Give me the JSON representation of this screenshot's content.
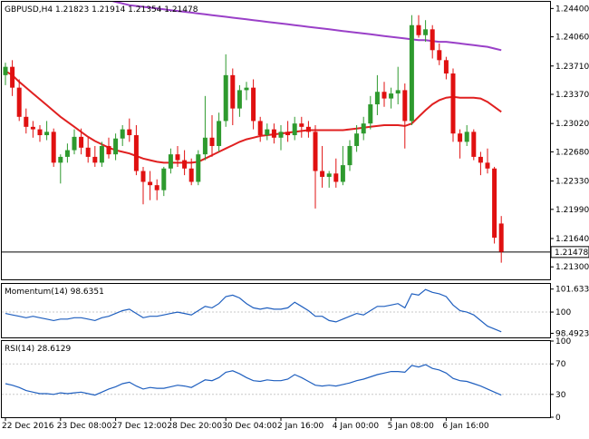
{
  "colors": {
    "bull": "#2e9a2e",
    "bear": "#e01010",
    "ma_fast": "#e02020",
    "ma_slow": "#9a40c8",
    "osc": "#1f5fbf",
    "grid": "#c8c8c8",
    "frame": "#000000"
  },
  "icons": {
    "current_price_tag": "price-tag"
  },
  "chart_data": [
    {
      "type": "candlestick",
      "title": "GBPUSD,H4  1.21823 1.21914 1.21354 1.21478",
      "ylim": [
        1.2115,
        1.2448
      ],
      "yticks": [
        1.244,
        1.2406,
        1.2371,
        1.2337,
        1.2302,
        1.2268,
        1.2233,
        1.2199,
        1.2164,
        1.213
      ],
      "ytick_labels": [
        "1.24400",
        "1.24060",
        "1.23710",
        "1.23370",
        "1.23020",
        "1.22680",
        "1.22330",
        "1.21990",
        "1.21640",
        "1.21300"
      ],
      "current_price": 1.21478,
      "current_price_label": "1.21478",
      "candles": [
        {
          "o": 1.236,
          "h": 1.2375,
          "l": 1.2348,
          "c": 1.237
        },
        {
          "o": 1.237,
          "h": 1.2378,
          "l": 1.2335,
          "c": 1.2345
        },
        {
          "o": 1.2345,
          "h": 1.2355,
          "l": 1.2305,
          "c": 1.231
        },
        {
          "o": 1.231,
          "h": 1.232,
          "l": 1.229,
          "c": 1.2298
        },
        {
          "o": 1.2298,
          "h": 1.2305,
          "l": 1.2285,
          "c": 1.2295
        },
        {
          "o": 1.2295,
          "h": 1.23,
          "l": 1.228,
          "c": 1.2288
        },
        {
          "o": 1.2288,
          "h": 1.2305,
          "l": 1.2282,
          "c": 1.2292
        },
        {
          "o": 1.2292,
          "h": 1.2296,
          "l": 1.225,
          "c": 1.2255
        },
        {
          "o": 1.2255,
          "h": 1.2265,
          "l": 1.223,
          "c": 1.2262
        },
        {
          "o": 1.2262,
          "h": 1.2278,
          "l": 1.2255,
          "c": 1.227
        },
        {
          "o": 1.227,
          "h": 1.2295,
          "l": 1.2265,
          "c": 1.2286
        },
        {
          "o": 1.2286,
          "h": 1.2296,
          "l": 1.2265,
          "c": 1.2273
        },
        {
          "o": 1.2273,
          "h": 1.2285,
          "l": 1.2255,
          "c": 1.2262
        },
        {
          "o": 1.2262,
          "h": 1.2275,
          "l": 1.225,
          "c": 1.2255
        },
        {
          "o": 1.2255,
          "h": 1.228,
          "l": 1.225,
          "c": 1.2275
        },
        {
          "o": 1.2275,
          "h": 1.2285,
          "l": 1.226,
          "c": 1.2265
        },
        {
          "o": 1.2265,
          "h": 1.229,
          "l": 1.2258,
          "c": 1.2284
        },
        {
          "o": 1.2284,
          "h": 1.23,
          "l": 1.2275,
          "c": 1.2295
        },
        {
          "o": 1.2295,
          "h": 1.2308,
          "l": 1.228,
          "c": 1.2288
        },
        {
          "o": 1.2288,
          "h": 1.23,
          "l": 1.224,
          "c": 1.2245
        },
        {
          "o": 1.2245,
          "h": 1.225,
          "l": 1.2205,
          "c": 1.2232
        },
        {
          "o": 1.2232,
          "h": 1.2245,
          "l": 1.221,
          "c": 1.2228
        },
        {
          "o": 1.2228,
          "h": 1.2235,
          "l": 1.221,
          "c": 1.2222
        },
        {
          "o": 1.2222,
          "h": 1.225,
          "l": 1.2215,
          "c": 1.2248
        },
        {
          "o": 1.2248,
          "h": 1.2272,
          "l": 1.2242,
          "c": 1.2265
        },
        {
          "o": 1.2265,
          "h": 1.2275,
          "l": 1.225,
          "c": 1.2258
        },
        {
          "o": 1.2258,
          "h": 1.227,
          "l": 1.224,
          "c": 1.2248
        },
        {
          "o": 1.2248,
          "h": 1.226,
          "l": 1.2228,
          "c": 1.2232
        },
        {
          "o": 1.2232,
          "h": 1.227,
          "l": 1.2228,
          "c": 1.2265
        },
        {
          "o": 1.2265,
          "h": 1.2335,
          "l": 1.2258,
          "c": 1.2285
        },
        {
          "o": 1.2285,
          "h": 1.2312,
          "l": 1.2262,
          "c": 1.2275
        },
        {
          "o": 1.2275,
          "h": 1.2315,
          "l": 1.2268,
          "c": 1.2305
        },
        {
          "o": 1.2305,
          "h": 1.2385,
          "l": 1.2298,
          "c": 1.236
        },
        {
          "o": 1.236,
          "h": 1.2368,
          "l": 1.23,
          "c": 1.232
        },
        {
          "o": 1.232,
          "h": 1.2348,
          "l": 1.231,
          "c": 1.2342
        },
        {
          "o": 1.2342,
          "h": 1.2352,
          "l": 1.233,
          "c": 1.2345
        },
        {
          "o": 1.2345,
          "h": 1.2355,
          "l": 1.2295,
          "c": 1.2305
        },
        {
          "o": 1.2305,
          "h": 1.231,
          "l": 1.228,
          "c": 1.2288
        },
        {
          "o": 1.2288,
          "h": 1.2302,
          "l": 1.2282,
          "c": 1.2295
        },
        {
          "o": 1.2295,
          "h": 1.2302,
          "l": 1.2278,
          "c": 1.2285
        },
        {
          "o": 1.2285,
          "h": 1.23,
          "l": 1.227,
          "c": 1.2292
        },
        {
          "o": 1.2292,
          "h": 1.2305,
          "l": 1.228,
          "c": 1.2288
        },
        {
          "o": 1.2288,
          "h": 1.231,
          "l": 1.2282,
          "c": 1.2302
        },
        {
          "o": 1.2302,
          "h": 1.231,
          "l": 1.2285,
          "c": 1.2298
        },
        {
          "o": 1.2298,
          "h": 1.2305,
          "l": 1.2285,
          "c": 1.2292
        },
        {
          "o": 1.2292,
          "h": 1.23,
          "l": 1.22,
          "c": 1.2245
        },
        {
          "o": 1.2245,
          "h": 1.2275,
          "l": 1.2225,
          "c": 1.2238
        },
        {
          "o": 1.2238,
          "h": 1.2245,
          "l": 1.2225,
          "c": 1.2242
        },
        {
          "o": 1.2242,
          "h": 1.226,
          "l": 1.2225,
          "c": 1.2232
        },
        {
          "o": 1.2232,
          "h": 1.2275,
          "l": 1.2228,
          "c": 1.2252
        },
        {
          "o": 1.2252,
          "h": 1.2282,
          "l": 1.2245,
          "c": 1.2275
        },
        {
          "o": 1.2275,
          "h": 1.23,
          "l": 1.2268,
          "c": 1.229
        },
        {
          "o": 1.229,
          "h": 1.231,
          "l": 1.2282,
          "c": 1.2302
        },
        {
          "o": 1.2302,
          "h": 1.2335,
          "l": 1.2295,
          "c": 1.2325
        },
        {
          "o": 1.2325,
          "h": 1.236,
          "l": 1.2312,
          "c": 1.234
        },
        {
          "o": 1.234,
          "h": 1.2352,
          "l": 1.2322,
          "c": 1.2332
        },
        {
          "o": 1.2332,
          "h": 1.2345,
          "l": 1.232,
          "c": 1.2338
        },
        {
          "o": 1.2338,
          "h": 1.237,
          "l": 1.2325,
          "c": 1.2342
        },
        {
          "o": 1.2342,
          "h": 1.235,
          "l": 1.2272,
          "c": 1.2305
        },
        {
          "o": 1.2305,
          "h": 1.2432,
          "l": 1.23,
          "c": 1.242
        },
        {
          "o": 1.242,
          "h": 1.2432,
          "l": 1.2405,
          "c": 1.2408
        },
        {
          "o": 1.2408,
          "h": 1.2426,
          "l": 1.24,
          "c": 1.2415
        },
        {
          "o": 1.2415,
          "h": 1.242,
          "l": 1.238,
          "c": 1.239
        },
        {
          "o": 1.239,
          "h": 1.2398,
          "l": 1.2372,
          "c": 1.2378
        },
        {
          "o": 1.2378,
          "h": 1.2382,
          "l": 1.2355,
          "c": 1.2362
        },
        {
          "o": 1.2362,
          "h": 1.2368,
          "l": 1.228,
          "c": 1.229
        },
        {
          "o": 1.229,
          "h": 1.2295,
          "l": 1.226,
          "c": 1.228
        },
        {
          "o": 1.228,
          "h": 1.23,
          "l": 1.2275,
          "c": 1.2292
        },
        {
          "o": 1.2292,
          "h": 1.2295,
          "l": 1.2258,
          "c": 1.2262
        },
        {
          "o": 1.2262,
          "h": 1.2268,
          "l": 1.224,
          "c": 1.2255
        },
        {
          "o": 1.2255,
          "h": 1.2272,
          "l": 1.2242,
          "c": 1.2248
        },
        {
          "o": 1.2248,
          "h": 1.225,
          "l": 1.2158,
          "c": 1.2165
        },
        {
          "o": 1.2182,
          "h": 1.2191,
          "l": 1.2135,
          "c": 1.2148
        }
      ],
      "ma_fast": [
        1.2365,
        1.236,
        1.2352,
        1.2345,
        1.2338,
        1.2331,
        1.2324,
        1.2317,
        1.231,
        1.2304,
        1.2298,
        1.2292,
        1.2286,
        1.2281,
        1.2277,
        1.2273,
        1.227,
        1.2268,
        1.2266,
        1.2263,
        1.226,
        1.2258,
        1.2256,
        1.2255,
        1.2255,
        1.2255,
        1.2255,
        1.2255,
        1.2256,
        1.226,
        1.2264,
        1.2268,
        1.2272,
        1.2276,
        1.228,
        1.2283,
        1.2285,
        1.2287,
        1.2288,
        1.2289,
        1.229,
        1.2291,
        1.2292,
        1.2293,
        1.2294,
        1.2294,
        1.2294,
        1.2294,
        1.2294,
        1.2294,
        1.2295,
        1.2296,
        1.2297,
        1.2298,
        1.2299,
        1.23,
        1.23,
        1.23,
        1.2299,
        1.2302,
        1.231,
        1.2318,
        1.2325,
        1.233,
        1.2333,
        1.2334,
        1.2333,
        1.2333,
        1.2333,
        1.2332,
        1.2328,
        1.2322,
        1.2316
      ],
      "ma_slow": [
        1.248,
        1.2478,
        1.2476,
        1.2474,
        1.2472,
        1.247,
        1.2468,
        1.2466,
        1.2464,
        1.2462,
        1.246,
        1.2458,
        1.2456,
        1.2454,
        1.2452,
        1.245,
        1.2448,
        1.2446,
        1.2444,
        1.2443,
        1.2442,
        1.2441,
        1.244,
        1.2439,
        1.2438,
        1.2437,
        1.2436,
        1.2435,
        1.2434,
        1.2433,
        1.2432,
        1.2431,
        1.243,
        1.2429,
        1.2428,
        1.2427,
        1.2426,
        1.2425,
        1.2424,
        1.2423,
        1.2422,
        1.2421,
        1.242,
        1.2419,
        1.2418,
        1.2417,
        1.2416,
        1.2415,
        1.2414,
        1.2413,
        1.2412,
        1.2411,
        1.241,
        1.2409,
        1.2408,
        1.2407,
        1.2406,
        1.2405,
        1.2404,
        1.2403,
        1.2402,
        1.2402,
        1.2401,
        1.24,
        1.24,
        1.2399,
        1.2398,
        1.2397,
        1.2396,
        1.2395,
        1.2394,
        1.2392,
        1.239
      ]
    },
    {
      "type": "line",
      "title": "Momentum(14) 98.6351",
      "ylim": [
        98.2,
        102.0
      ],
      "yticks": [
        101.6332,
        100,
        98.4923
      ],
      "ytick_labels": [
        "101.6332",
        "100",
        "98.4923"
      ],
      "grid_levels": [
        100
      ],
      "values": [
        99.9,
        99.8,
        99.7,
        99.6,
        99.7,
        99.6,
        99.5,
        99.4,
        99.5,
        99.5,
        99.6,
        99.6,
        99.5,
        99.4,
        99.6,
        99.7,
        99.9,
        100.1,
        100.2,
        99.9,
        99.6,
        99.7,
        99.7,
        99.8,
        99.9,
        100.0,
        99.9,
        99.8,
        100.1,
        100.4,
        100.3,
        100.6,
        101.1,
        101.2,
        101.0,
        100.6,
        100.3,
        100.2,
        100.3,
        100.2,
        100.2,
        100.3,
        100.7,
        100.4,
        100.1,
        99.7,
        99.7,
        99.4,
        99.3,
        99.5,
        99.7,
        99.9,
        99.8,
        100.1,
        100.4,
        100.4,
        100.5,
        100.6,
        100.3,
        101.3,
        101.2,
        101.6,
        101.4,
        101.3,
        101.1,
        100.5,
        100.1,
        100.0,
        99.8,
        99.4,
        99.0,
        98.8,
        98.6
      ]
    },
    {
      "type": "line",
      "title": "RSI(14) 28.6129",
      "ylim": [
        0,
        100
      ],
      "yticks": [
        100,
        70,
        30,
        0
      ],
      "ytick_labels": [
        "100",
        "70",
        "30",
        "0"
      ],
      "grid_levels": [
        70,
        30
      ],
      "values": [
        44,
        42,
        39,
        35,
        33,
        31,
        31,
        30,
        32,
        31,
        32,
        33,
        31,
        29,
        33,
        37,
        40,
        44,
        46,
        41,
        37,
        39,
        38,
        38,
        40,
        42,
        41,
        39,
        44,
        49,
        48,
        52,
        59,
        61,
        57,
        52,
        48,
        47,
        49,
        48,
        48,
        50,
        56,
        52,
        47,
        42,
        41,
        42,
        41,
        43,
        45,
        48,
        50,
        53,
        56,
        58,
        60,
        60,
        59,
        68,
        66,
        69,
        64,
        62,
        58,
        51,
        48,
        47,
        44,
        41,
        37,
        33,
        29
      ]
    },
    {
      "type": "axis",
      "xtick_labels": [
        "22 Dec 2016",
        "23 Dec 08:00",
        "27 Dec 12:00",
        "28 Dec 20:00",
        "30 Dec 04:00",
        "2 Jan 16:00",
        "4 Jan 00:00",
        "5 Jan 08:00",
        "6 Jan 16:00"
      ]
    }
  ]
}
